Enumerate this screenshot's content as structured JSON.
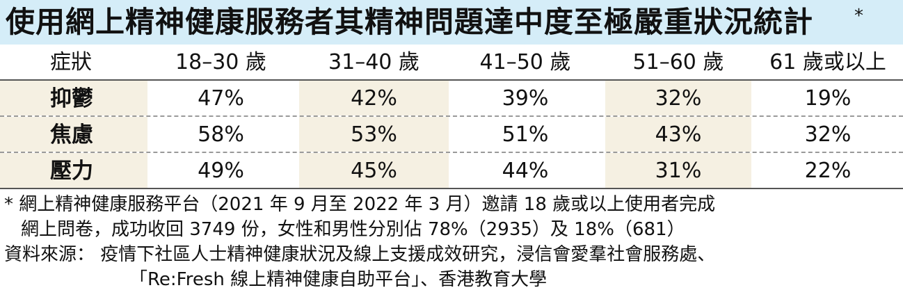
{
  "title": "使用網上精神健康服務者其精神問題達中度至極嚴重狀況統計",
  "title_star": "*",
  "table": {
    "headers": [
      "症狀",
      "18–30 歲",
      "31–40 歲",
      "41–50 歲",
      "51–60 歲",
      "61 歲或以上"
    ],
    "rows": [
      {
        "label": "抑鬱",
        "values": [
          "47%",
          "42%",
          "39%",
          "32%",
          "19%"
        ]
      },
      {
        "label": "焦慮",
        "values": [
          "58%",
          "53%",
          "51%",
          "43%",
          "32%"
        ]
      },
      {
        "label": "壓力",
        "values": [
          "49%",
          "45%",
          "44%",
          "31%",
          "22%"
        ]
      }
    ]
  },
  "notes": {
    "footnote_line1": "* 網上精神健康服務平台（2021 年 9 月至 2022 年 3 月）邀請 18 歲或以上使用者完成",
    "footnote_line2": "網上問卷，成功收回 3749 份，女性和男性分別佔 78%（2935）及 18%（681）",
    "source_line1": "資料來源： 疫情下社區人士精神健康狀況及線上支援成效研究，浸信會愛羣社會服務處、",
    "source_line2": "「Re:Fresh 線上精神健康自助平台」、香港教育大學"
  },
  "colors": {
    "title_background": "#d5edf8",
    "shaded_column": "#f5f0e2"
  }
}
